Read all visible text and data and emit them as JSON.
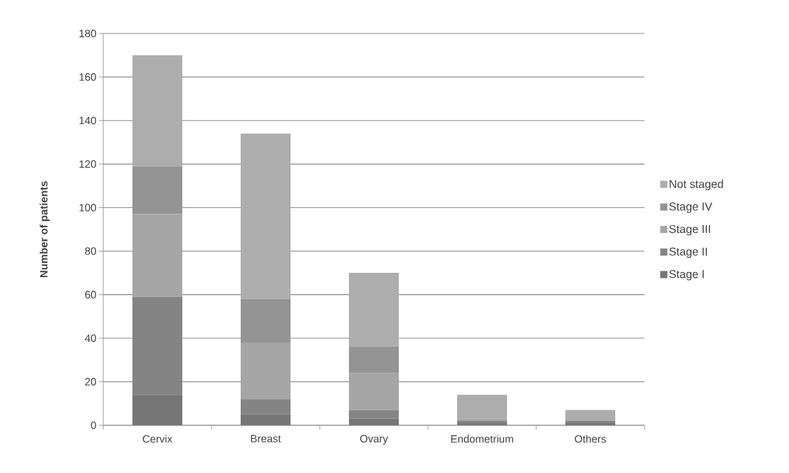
{
  "chart_data": {
    "type": "bar",
    "stacked": true,
    "ylabel": "Number of patients",
    "categories": [
      "Cervix",
      "Breast",
      "Ovary",
      "Endometrium",
      "Others"
    ],
    "series": [
      {
        "name": "Stage I",
        "color": "#767676",
        "values": [
          14,
          5,
          3,
          1,
          1
        ]
      },
      {
        "name": "Stage II",
        "color": "#848484",
        "values": [
          45,
          7,
          4,
          1,
          1
        ]
      },
      {
        "name": "Stage III",
        "color": "#a6a6a6",
        "values": [
          38,
          26,
          17,
          1,
          0
        ]
      },
      {
        "name": "Stage IV",
        "color": "#949494",
        "values": [
          22,
          20,
          12,
          0,
          0
        ]
      },
      {
        "name": "Not staged",
        "color": "#adadad",
        "values": [
          51,
          76,
          34,
          11,
          5
        ]
      }
    ],
    "ylim": [
      0,
      180
    ],
    "yticks": [
      0,
      20,
      40,
      60,
      80,
      100,
      120,
      140,
      160,
      180
    ],
    "grid": "y",
    "legend": "right"
  }
}
